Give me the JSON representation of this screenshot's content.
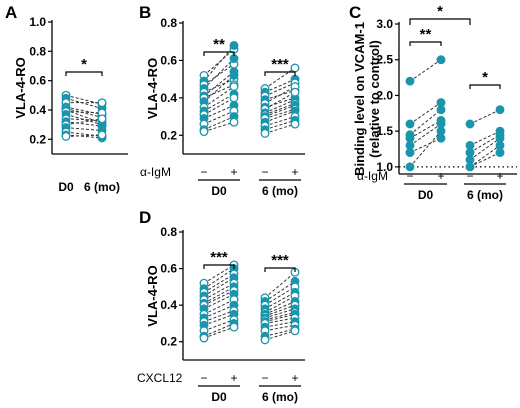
{
  "colors": {
    "point": "#1a95ac",
    "point_open_fill": "#ffffff",
    "pair_line": "#333333",
    "axis": "#000000"
  },
  "chart_data": [
    {
      "panel": "A",
      "type": "scatter",
      "subtype": "paired-dot",
      "ylabel": "VLA-4-RO",
      "ylim": [
        0.1,
        1.0
      ],
      "yticks": [
        "0.2",
        "0.4",
        "0.6",
        "0.8",
        "1.0"
      ],
      "categories": [
        "D0",
        "6 (mo)"
      ],
      "pairs": [
        [
          0.5,
          0.44,
          true
        ],
        [
          0.48,
          0.41,
          false
        ],
        [
          0.45,
          0.45,
          true
        ],
        [
          0.42,
          0.37,
          false
        ],
        [
          0.41,
          0.35,
          true
        ],
        [
          0.4,
          0.31,
          false
        ],
        [
          0.39,
          0.38,
          true
        ],
        [
          0.37,
          0.3,
          false
        ],
        [
          0.34,
          0.33,
          true
        ],
        [
          0.32,
          0.29,
          false
        ],
        [
          0.3,
          0.34,
          true
        ],
        [
          0.28,
          0.26,
          false
        ],
        [
          0.25,
          0.22,
          true
        ],
        [
          0.23,
          0.21,
          false
        ],
        [
          0.22,
          0.23,
          true
        ]
      ],
      "significance": [
        {
          "from": 0,
          "to": 1,
          "label": "*"
        }
      ]
    },
    {
      "panel": "B",
      "type": "scatter",
      "subtype": "paired-dot",
      "ylabel": "VLA-4-RO",
      "ylim": [
        0.1,
        0.8
      ],
      "yticks": [
        "0.2",
        "0.4",
        "0.6",
        "0.8"
      ],
      "treatment": "α-IgM",
      "conditions": [
        "−",
        "+",
        "−",
        "+"
      ],
      "groups": [
        "D0",
        "6 (mo)"
      ],
      "pairs_by_group": [
        [
          [
            0.52,
            0.66,
            true
          ],
          [
            0.49,
            0.68,
            false
          ],
          [
            0.47,
            0.58,
            true
          ],
          [
            0.45,
            0.61,
            false
          ],
          [
            0.43,
            0.5,
            true
          ],
          [
            0.41,
            0.54,
            false
          ],
          [
            0.4,
            0.47,
            true
          ],
          [
            0.38,
            0.52,
            false
          ],
          [
            0.35,
            0.46,
            true
          ],
          [
            0.33,
            0.42,
            false
          ],
          [
            0.31,
            0.4,
            true
          ],
          [
            0.29,
            0.36,
            false
          ],
          [
            0.26,
            0.33,
            true
          ],
          [
            0.23,
            0.3,
            false
          ],
          [
            0.22,
            0.27,
            true
          ]
        ],
        [
          [
            0.45,
            0.56,
            true
          ],
          [
            0.43,
            0.5,
            false
          ],
          [
            0.41,
            0.48,
            true
          ],
          [
            0.39,
            0.44,
            false
          ],
          [
            0.37,
            0.46,
            true
          ],
          [
            0.35,
            0.4,
            false
          ],
          [
            0.34,
            0.43,
            true
          ],
          [
            0.32,
            0.39,
            false
          ],
          [
            0.31,
            0.37,
            true
          ],
          [
            0.3,
            0.36,
            false
          ],
          [
            0.29,
            0.34,
            true
          ],
          [
            0.27,
            0.33,
            false
          ],
          [
            0.25,
            0.3,
            true
          ],
          [
            0.23,
            0.28,
            false
          ],
          [
            0.21,
            0.26,
            true
          ]
        ]
      ],
      "significance": [
        {
          "group": 0,
          "label": "**"
        },
        {
          "group": 1,
          "label": "***"
        }
      ]
    },
    {
      "panel": "C",
      "type": "scatter",
      "subtype": "paired-dot",
      "ylabel": "Binding level on VCAM-1",
      "ylabel2": "(relative to control)",
      "ylim": [
        0.9,
        3.0
      ],
      "yticks": [
        "1.0",
        "1.5",
        "2.0",
        "2.5",
        "3.0"
      ],
      "reference_line": 1.0,
      "treatment": "α-IgM",
      "conditions": [
        "−",
        "+",
        "−",
        "+"
      ],
      "groups": [
        "D0",
        "6 (mo)"
      ],
      "pairs_by_group": [
        [
          [
            2.2,
            2.5,
            false
          ],
          [
            1.6,
            1.9,
            false
          ],
          [
            1.45,
            1.8,
            false
          ],
          [
            1.4,
            1.65,
            false
          ],
          [
            1.3,
            1.6,
            false
          ],
          [
            1.2,
            1.4,
            false
          ],
          [
            1.0,
            1.5,
            false
          ]
        ],
        [
          [
            1.6,
            1.8,
            false
          ],
          [
            1.3,
            1.5,
            false
          ],
          [
            1.2,
            1.45,
            false
          ],
          [
            1.1,
            1.4,
            false
          ],
          [
            1.0,
            1.3,
            false
          ],
          [
            1.0,
            1.2,
            false
          ]
        ]
      ],
      "significance": [
        {
          "group": 0,
          "label": "**"
        },
        {
          "group": 1,
          "label": "*"
        },
        {
          "across": true,
          "label": "*"
        }
      ]
    },
    {
      "panel": "D",
      "type": "scatter",
      "subtype": "paired-dot",
      "ylabel": "VLA-4-RO",
      "ylim": [
        0.1,
        0.8
      ],
      "yticks": [
        "0.2",
        "0.4",
        "0.6",
        "0.8"
      ],
      "treatment": "CXCL12",
      "conditions": [
        "−",
        "+",
        "−",
        "+"
      ],
      "groups": [
        "D0",
        "6 (mo)"
      ],
      "pairs_by_group": [
        [
          [
            0.52,
            0.62,
            true
          ],
          [
            0.49,
            0.6,
            false
          ],
          [
            0.47,
            0.57,
            true
          ],
          [
            0.45,
            0.55,
            false
          ],
          [
            0.43,
            0.52,
            true
          ],
          [
            0.41,
            0.5,
            false
          ],
          [
            0.4,
            0.48,
            true
          ],
          [
            0.38,
            0.46,
            false
          ],
          [
            0.35,
            0.43,
            true
          ],
          [
            0.33,
            0.4,
            false
          ],
          [
            0.31,
            0.37,
            true
          ],
          [
            0.29,
            0.35,
            false
          ],
          [
            0.26,
            0.32,
            true
          ],
          [
            0.23,
            0.3,
            false
          ],
          [
            0.22,
            0.28,
            true
          ]
        ],
        [
          [
            0.44,
            0.58,
            true
          ],
          [
            0.42,
            0.53,
            false
          ],
          [
            0.4,
            0.5,
            true
          ],
          [
            0.38,
            0.47,
            false
          ],
          [
            0.36,
            0.45,
            true
          ],
          [
            0.35,
            0.42,
            false
          ],
          [
            0.34,
            0.4,
            true
          ],
          [
            0.33,
            0.38,
            false
          ],
          [
            0.32,
            0.36,
            true
          ],
          [
            0.31,
            0.35,
            false
          ],
          [
            0.3,
            0.33,
            true
          ],
          [
            0.28,
            0.31,
            false
          ],
          [
            0.26,
            0.29,
            true
          ],
          [
            0.23,
            0.27,
            false
          ],
          [
            0.21,
            0.26,
            true
          ]
        ]
      ],
      "significance": [
        {
          "group": 0,
          "label": "***"
        },
        {
          "group": 1,
          "label": "***"
        }
      ]
    }
  ]
}
